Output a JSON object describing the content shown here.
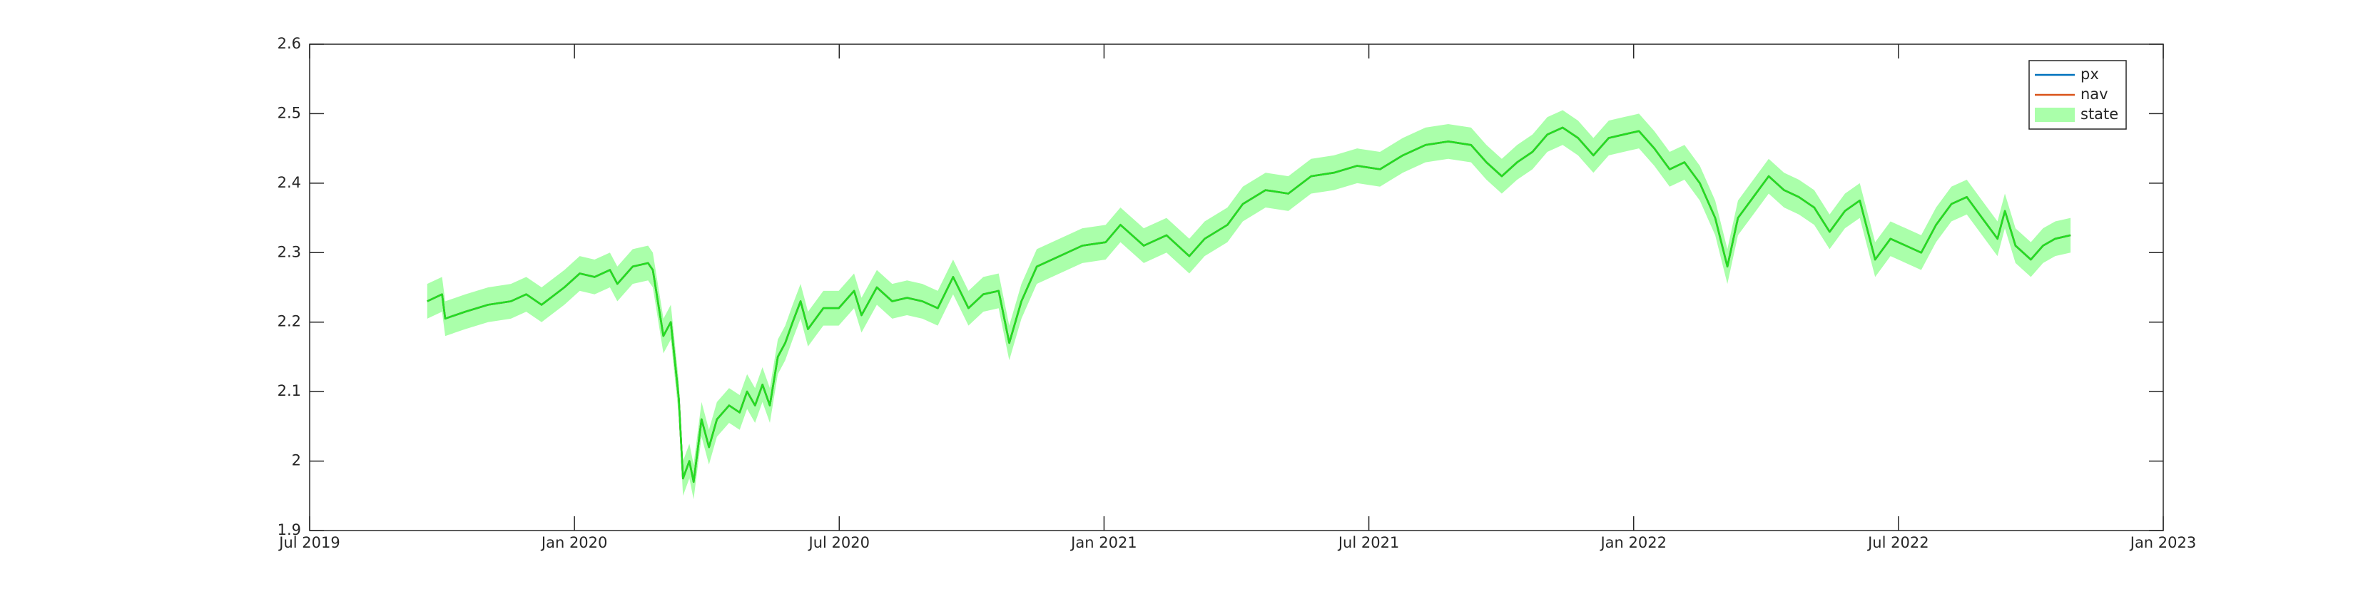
{
  "chart_data": {
    "type": "line",
    "x": [
      2019.722,
      2019.75,
      2019.756,
      2019.794,
      2019.837,
      2019.88,
      2019.909,
      2019.938,
      2019.981,
      2020.01,
      2020.038,
      2020.067,
      2020.081,
      2020.11,
      2020.139,
      2020.148,
      2020.168,
      2020.182,
      2020.197,
      2020.205,
      2020.217,
      2020.225,
      2020.24,
      2020.254,
      2020.269,
      2020.292,
      2020.312,
      2020.326,
      2020.341,
      2020.355,
      2020.369,
      2020.384,
      2020.398,
      2020.412,
      2020.427,
      2020.441,
      2020.47,
      2020.499,
      2020.528,
      2020.542,
      2020.571,
      2020.6,
      2020.628,
      2020.657,
      2020.686,
      2020.715,
      2020.744,
      2020.772,
      2020.801,
      2020.821,
      2020.844,
      2020.873,
      2020.916,
      2020.959,
      2021.003,
      2021.031,
      2021.075,
      2021.118,
      2021.161,
      2021.19,
      2021.233,
      2021.262,
      2021.305,
      2021.348,
      2021.391,
      2021.434,
      2021.478,
      2021.521,
      2021.564,
      2021.607,
      2021.65,
      2021.693,
      2021.722,
      2021.751,
      2021.78,
      2021.809,
      2021.837,
      2021.866,
      2021.895,
      2021.924,
      2021.953,
      2021.981,
      2022.01,
      2022.039,
      2022.068,
      2022.096,
      2022.125,
      2022.154,
      2022.177,
      2022.197,
      2022.226,
      2022.255,
      2022.284,
      2022.312,
      2022.341,
      2022.37,
      2022.399,
      2022.427,
      2022.456,
      2022.485,
      2022.514,
      2022.543,
      2022.571,
      2022.6,
      2022.629,
      2022.658,
      2022.687,
      2022.701,
      2022.721,
      2022.75,
      2022.773,
      2022.796,
      2022.825
    ],
    "series": [
      {
        "name": "px",
        "color": "#0072bd",
        "values": [
          2.23,
          2.24,
          2.205,
          2.215,
          2.225,
          2.23,
          2.24,
          2.225,
          2.25,
          2.27,
          2.265,
          2.275,
          2.255,
          2.28,
          2.285,
          2.275,
          2.18,
          2.2,
          2.09,
          1.975,
          2.0,
          1.97,
          2.06,
          2.02,
          2.06,
          2.08,
          2.07,
          2.1,
          2.08,
          2.11,
          2.08,
          2.15,
          2.17,
          2.2,
          2.23,
          2.19,
          2.22,
          2.22,
          2.245,
          2.21,
          2.25,
          2.23,
          2.235,
          2.23,
          2.22,
          2.265,
          2.22,
          2.24,
          2.245,
          2.17,
          2.23,
          2.28,
          2.295,
          2.31,
          2.315,
          2.34,
          2.31,
          2.325,
          2.295,
          2.32,
          2.34,
          2.37,
          2.39,
          2.385,
          2.41,
          2.415,
          2.425,
          2.42,
          2.44,
          2.455,
          2.46,
          2.455,
          2.43,
          2.41,
          2.43,
          2.445,
          2.47,
          2.48,
          2.465,
          2.44,
          2.465,
          2.47,
          2.475,
          2.45,
          2.42,
          2.43,
          2.4,
          2.35,
          2.28,
          2.35,
          2.38,
          2.41,
          2.39,
          2.38,
          2.365,
          2.33,
          2.36,
          2.375,
          2.29,
          2.32,
          2.31,
          2.3,
          2.34,
          2.37,
          2.38,
          2.35,
          2.32,
          2.36,
          2.31,
          2.29,
          2.31,
          2.32,
          2.325
        ]
      },
      {
        "name": "nav",
        "color": "#d95319",
        "values": [
          2.23,
          2.24,
          2.205,
          2.215,
          2.225,
          2.23,
          2.24,
          2.225,
          2.25,
          2.27,
          2.265,
          2.275,
          2.255,
          2.28,
          2.285,
          2.275,
          2.18,
          2.2,
          2.09,
          1.975,
          2.0,
          1.97,
          2.06,
          2.02,
          2.06,
          2.08,
          2.07,
          2.1,
          2.08,
          2.11,
          2.08,
          2.15,
          2.17,
          2.2,
          2.23,
          2.19,
          2.22,
          2.22,
          2.245,
          2.21,
          2.25,
          2.23,
          2.235,
          2.23,
          2.22,
          2.265,
          2.22,
          2.24,
          2.245,
          2.17,
          2.23,
          2.28,
          2.295,
          2.31,
          2.315,
          2.34,
          2.31,
          2.325,
          2.295,
          2.32,
          2.34,
          2.37,
          2.39,
          2.385,
          2.41,
          2.415,
          2.425,
          2.42,
          2.44,
          2.455,
          2.46,
          2.455,
          2.43,
          2.41,
          2.43,
          2.445,
          2.47,
          2.48,
          2.465,
          2.44,
          2.465,
          2.47,
          2.475,
          2.45,
          2.42,
          2.43,
          2.4,
          2.35,
          2.28,
          2.35,
          2.38,
          2.41,
          2.39,
          2.38,
          2.365,
          2.33,
          2.36,
          2.375,
          2.29,
          2.32,
          2.31,
          2.3,
          2.34,
          2.37,
          2.38,
          2.35,
          2.32,
          2.36,
          2.31,
          2.29,
          2.31,
          2.32,
          2.325
        ]
      },
      {
        "name": "state",
        "color": "#22dd22",
        "band_color": "#aaffaa",
        "band": 0.025,
        "values": [
          2.23,
          2.24,
          2.205,
          2.215,
          2.225,
          2.23,
          2.24,
          2.225,
          2.25,
          2.27,
          2.265,
          2.275,
          2.255,
          2.28,
          2.285,
          2.275,
          2.18,
          2.2,
          2.09,
          1.975,
          2.0,
          1.97,
          2.06,
          2.02,
          2.06,
          2.08,
          2.07,
          2.1,
          2.08,
          2.11,
          2.08,
          2.15,
          2.17,
          2.2,
          2.23,
          2.19,
          2.22,
          2.22,
          2.245,
          2.21,
          2.25,
          2.23,
          2.235,
          2.23,
          2.22,
          2.265,
          2.22,
          2.24,
          2.245,
          2.17,
          2.23,
          2.28,
          2.295,
          2.31,
          2.315,
          2.34,
          2.31,
          2.325,
          2.295,
          2.32,
          2.34,
          2.37,
          2.39,
          2.385,
          2.41,
          2.415,
          2.425,
          2.42,
          2.44,
          2.455,
          2.46,
          2.455,
          2.43,
          2.41,
          2.43,
          2.445,
          2.47,
          2.48,
          2.465,
          2.44,
          2.465,
          2.47,
          2.475,
          2.45,
          2.42,
          2.43,
          2.4,
          2.35,
          2.28,
          2.35,
          2.38,
          2.41,
          2.39,
          2.38,
          2.365,
          2.33,
          2.36,
          2.375,
          2.29,
          2.32,
          2.31,
          2.3,
          2.34,
          2.37,
          2.38,
          2.35,
          2.32,
          2.36,
          2.31,
          2.29,
          2.31,
          2.32,
          2.325
        ]
      }
    ],
    "xlim": [
      2019.5,
      2023.0
    ],
    "xticks": [
      {
        "value": 2019.5,
        "label": "Jul 2019"
      },
      {
        "value": 2020.0,
        "label": "Jan 2020"
      },
      {
        "value": 2020.5,
        "label": "Jul 2020"
      },
      {
        "value": 2021.0,
        "label": "Jan 2021"
      },
      {
        "value": 2021.5,
        "label": "Jul 2021"
      },
      {
        "value": 2022.0,
        "label": "Jan 2022"
      },
      {
        "value": 2022.5,
        "label": "Jul 2022"
      },
      {
        "value": 2023.0,
        "label": "Jan 2023"
      }
    ],
    "ylim": [
      1.9,
      2.6
    ],
    "yticks": [
      1.9,
      2,
      2.1,
      2.2,
      2.3,
      2.4,
      2.5,
      2.6
    ],
    "grid": false,
    "legend": "upper right"
  }
}
